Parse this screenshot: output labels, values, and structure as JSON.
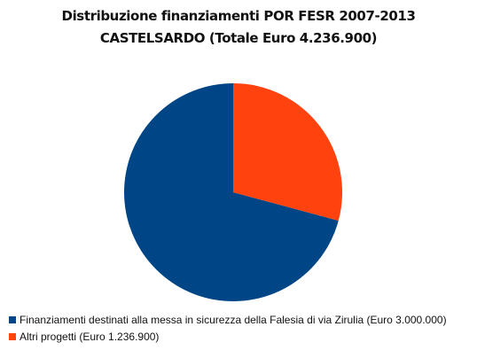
{
  "chart_data": {
    "type": "pie",
    "title": "Distribuzione finanziamenti POR FESR 2007-2013",
    "subtitle": "CASTELSARDO (Totale Euro 4.236.900)",
    "categories": [
      "Finanziamenti destinati alla messa in sicurezza della Falesia di via Zirulia (Euro 3.000.000)",
      "Altri progetti (Euro 1.236.900)"
    ],
    "values": [
      3000000,
      1236900
    ],
    "colors": [
      "#004586",
      "#ff420e"
    ],
    "legend_position": "bottom-left"
  }
}
